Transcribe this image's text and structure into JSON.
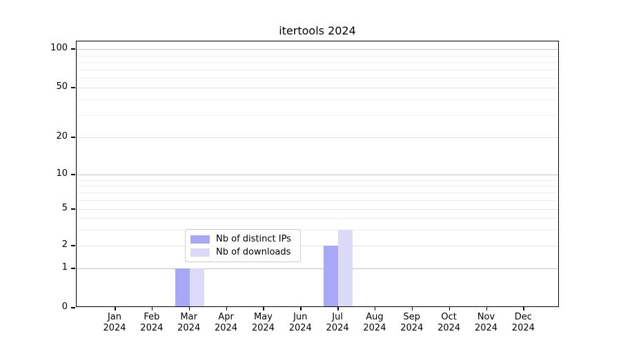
{
  "title": "itertools 2024",
  "chart_data": {
    "type": "bar",
    "title": "itertools 2024",
    "categories": [
      "Jan 2024",
      "Feb 2024",
      "Mar 2024",
      "Apr 2024",
      "May 2024",
      "Jun 2024",
      "Jul 2024",
      "Aug 2024",
      "Sep 2024",
      "Oct 2024",
      "Nov 2024",
      "Dec 2024"
    ],
    "series": [
      {
        "name": "Nb of distinct IPs",
        "color": "#a8a8f6",
        "values": [
          0,
          0,
          1,
          0,
          0,
          0,
          2,
          0,
          0,
          0,
          0,
          0
        ]
      },
      {
        "name": "Nb of downloads",
        "color": "#dbdbf9",
        "values": [
          0,
          0,
          1,
          0,
          0,
          0,
          3,
          0,
          0,
          0,
          0,
          0
        ]
      }
    ],
    "xlabel": "",
    "ylabel": "",
    "y_axis": {
      "scale": "symlog-like",
      "ticks": [
        0,
        1,
        2,
        5,
        10,
        20,
        50,
        100
      ],
      "minor_gridlines": [
        3,
        4,
        6,
        7,
        8,
        9,
        30,
        40,
        60,
        70,
        80,
        90
      ],
      "top_value": 115
    },
    "grid": true,
    "legend_position": "inside-lower-center"
  }
}
